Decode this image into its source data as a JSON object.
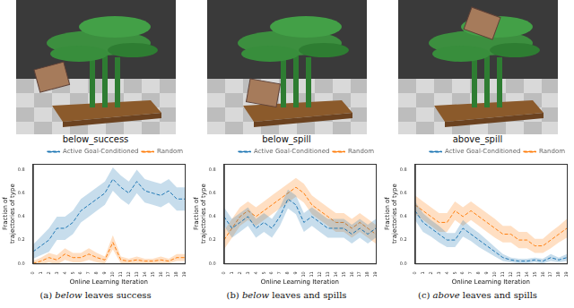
{
  "chart_data": [
    {
      "type": "line",
      "title": "below_success",
      "subtitle": "(a) below leaves success",
      "x_label": "Online Learning Iteration",
      "y_label": [
        "Fraction of",
        "trajectories of type"
      ],
      "x": [
        0,
        1,
        2,
        3,
        4,
        5,
        6,
        7,
        8,
        9,
        10,
        11,
        12,
        13,
        14,
        15,
        16,
        17,
        18,
        19
      ],
      "xlim": [
        0,
        19
      ],
      "xticks": [
        0,
        1,
        2,
        3,
        4,
        5,
        6,
        7,
        8,
        9,
        10,
        11,
        12,
        13,
        14,
        15,
        16,
        17,
        18,
        19
      ],
      "ylim": [
        0,
        0.85
      ],
      "yticks": [
        {
          "value": 0,
          "label": "0.0"
        },
        {
          "value": 0.2,
          "label": "0.2"
        },
        {
          "value": 0.4,
          "label": "0.4"
        },
        {
          "value": 0.6,
          "label": "0.6"
        },
        {
          "value": 0.8,
          "label": "0.8"
        }
      ],
      "grid": false,
      "legend": "upper right",
      "series": [
        {
          "name": "Active Goal-Conditioned",
          "color": "#1f77b4",
          "line_style": "dashed",
          "values": [
            0.1,
            0.15,
            0.2,
            0.3,
            0.3,
            0.35,
            0.45,
            0.5,
            0.55,
            0.6,
            0.72,
            0.65,
            0.6,
            0.7,
            0.62,
            0.6,
            0.58,
            0.62,
            0.55,
            0.55
          ],
          "error": [
            0.06,
            0.08,
            0.1,
            0.1,
            0.1,
            0.1,
            0.1,
            0.1,
            0.1,
            0.1,
            0.1,
            0.1,
            0.1,
            0.1,
            0.1,
            0.1,
            0.1,
            0.1,
            0.1,
            0.1
          ]
        },
        {
          "name": "Random",
          "color": "#ff7f0e",
          "line_style": "dashed",
          "values": [
            0.0,
            0.02,
            0.05,
            0.03,
            0.08,
            0.05,
            0.05,
            0.08,
            0.05,
            0.03,
            0.18,
            0.03,
            0.02,
            0.03,
            0.02,
            0.02,
            0.03,
            0.02,
            0.05,
            0.05
          ],
          "error": [
            0.02,
            0.03,
            0.04,
            0.04,
            0.05,
            0.04,
            0.04,
            0.05,
            0.04,
            0.03,
            0.06,
            0.03,
            0.02,
            0.03,
            0.02,
            0.02,
            0.03,
            0.02,
            0.03,
            0.03
          ]
        }
      ]
    },
    {
      "type": "line",
      "title": "below_spill",
      "subtitle": "(b) below leaves and spills",
      "x_label": "Online Learning Iteration",
      "y_label": [
        "Fraction of",
        "trajectories of type"
      ],
      "x": [
        0,
        1,
        2,
        3,
        4,
        5,
        6,
        7,
        8,
        9,
        10,
        11,
        12,
        13,
        14,
        15,
        16,
        17,
        18,
        19
      ],
      "xlim": [
        0,
        19
      ],
      "xticks": [
        0,
        1,
        2,
        3,
        4,
        5,
        6,
        7,
        8,
        9,
        10,
        11,
        12,
        13,
        14,
        15,
        16,
        17,
        18,
        19
      ],
      "ylim": [
        0,
        0.85
      ],
      "yticks": [
        {
          "value": 0,
          "label": "0.0"
        },
        {
          "value": 0.2,
          "label": "0.2"
        },
        {
          "value": 0.4,
          "label": "0.4"
        },
        {
          "value": 0.6,
          "label": "0.6"
        },
        {
          "value": 0.8,
          "label": "0.8"
        }
      ],
      "grid": false,
      "legend": "upper right",
      "series": [
        {
          "name": "Active Goal-Conditioned",
          "color": "#1f77b4",
          "line_style": "dashed",
          "values": [
            0.4,
            0.3,
            0.35,
            0.4,
            0.3,
            0.35,
            0.3,
            0.4,
            0.55,
            0.5,
            0.35,
            0.4,
            0.35,
            0.3,
            0.3,
            0.3,
            0.25,
            0.3,
            0.25,
            0.3
          ],
          "error": [
            0.08,
            0.08,
            0.08,
            0.08,
            0.08,
            0.08,
            0.08,
            0.08,
            0.08,
            0.08,
            0.08,
            0.08,
            0.08,
            0.08,
            0.08,
            0.08,
            0.08,
            0.08,
            0.08,
            0.08
          ]
        },
        {
          "name": "Random",
          "color": "#ff7f0e",
          "line_style": "dashed",
          "values": [
            0.2,
            0.3,
            0.4,
            0.45,
            0.4,
            0.45,
            0.5,
            0.55,
            0.6,
            0.65,
            0.6,
            0.5,
            0.45,
            0.4,
            0.35,
            0.35,
            0.3,
            0.35,
            0.3,
            0.25
          ],
          "error": [
            0.08,
            0.08,
            0.08,
            0.08,
            0.08,
            0.08,
            0.08,
            0.08,
            0.08,
            0.08,
            0.08,
            0.08,
            0.08,
            0.08,
            0.08,
            0.08,
            0.08,
            0.08,
            0.08,
            0.08
          ]
        }
      ]
    },
    {
      "type": "line",
      "title": "above_spill",
      "subtitle": "(c) above leaves and spills",
      "x_label": "Online Learning Iteration",
      "y_label": [
        "Fraction of",
        "trajectories of type"
      ],
      "x": [
        0,
        1,
        2,
        3,
        4,
        5,
        6,
        7,
        8,
        9,
        10,
        11,
        12,
        13,
        14,
        15,
        16,
        17,
        18,
        19
      ],
      "xlim": [
        0,
        19
      ],
      "xticks": [
        0,
        1,
        2,
        3,
        4,
        5,
        6,
        7,
        8,
        9,
        10,
        11,
        12,
        13,
        14,
        15,
        16,
        17,
        18,
        19
      ],
      "ylim": [
        0,
        0.85
      ],
      "yticks": [
        {
          "value": 0,
          "label": "0.0"
        },
        {
          "value": 0.2,
          "label": "0.2"
        },
        {
          "value": 0.4,
          "label": "0.4"
        },
        {
          "value": 0.6,
          "label": "0.6"
        },
        {
          "value": 0.8,
          "label": "0.8"
        }
      ],
      "grid": false,
      "legend": "upper right",
      "series": [
        {
          "name": "Active Goal-Conditioned",
          "color": "#1f77b4",
          "line_style": "dashed",
          "values": [
            0.45,
            0.35,
            0.3,
            0.25,
            0.2,
            0.2,
            0.3,
            0.25,
            0.2,
            0.15,
            0.1,
            0.05,
            0.03,
            0.02,
            0.02,
            0.03,
            0.02,
            0.05,
            0.03,
            0.05
          ],
          "error": [
            0.08,
            0.08,
            0.07,
            0.07,
            0.06,
            0.06,
            0.07,
            0.06,
            0.06,
            0.05,
            0.04,
            0.03,
            0.02,
            0.02,
            0.02,
            0.02,
            0.02,
            0.03,
            0.02,
            0.03
          ]
        },
        {
          "name": "Random",
          "color": "#ff7f0e",
          "line_style": "dashed",
          "values": [
            0.5,
            0.45,
            0.4,
            0.35,
            0.35,
            0.45,
            0.4,
            0.45,
            0.4,
            0.35,
            0.3,
            0.25,
            0.25,
            0.2,
            0.2,
            0.15,
            0.15,
            0.2,
            0.25,
            0.3
          ],
          "error": [
            0.08,
            0.08,
            0.08,
            0.08,
            0.08,
            0.08,
            0.08,
            0.08,
            0.08,
            0.08,
            0.08,
            0.07,
            0.07,
            0.07,
            0.07,
            0.06,
            0.06,
            0.07,
            0.07,
            0.08
          ]
        }
      ]
    }
  ]
}
